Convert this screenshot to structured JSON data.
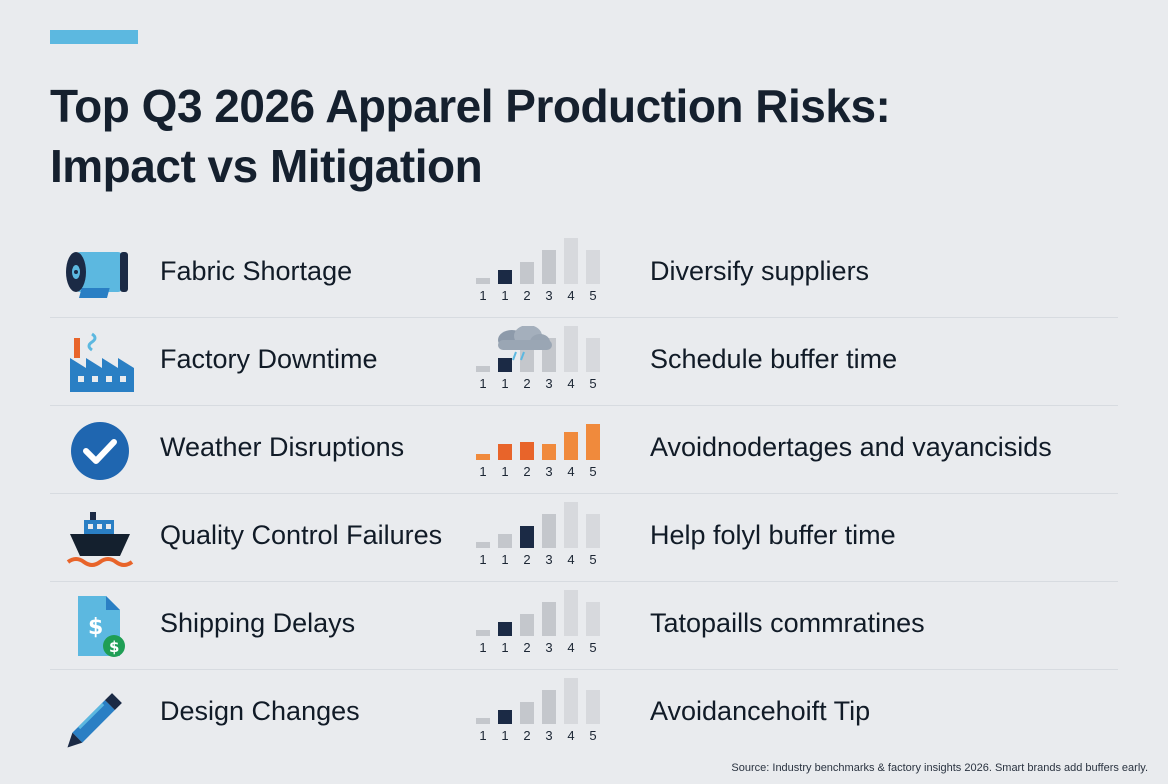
{
  "title_line1": "Top Q3 2026 Apparel Production Risks:",
  "title_line2": "Impact vs Mitigation",
  "scale_labels": [
    "1",
    "1",
    "2",
    "3",
    "4",
    "5"
  ],
  "colors": {
    "accent": "#5cb8e0",
    "navy": "#1b2a45",
    "gray_bar": "#c4c7cc",
    "light_bar": "#d7d9dd",
    "orange": "#f08a3c",
    "orange_dark": "#e8642a",
    "blue": "#2a7fc4"
  },
  "risks": [
    {
      "name": "Fabric Shortage",
      "icon": "fabric-roll-icon",
      "mitigation": "Diversify suppliers",
      "highlight_level": 2,
      "style": "navy"
    },
    {
      "name": "Factory Downtime",
      "icon": "factory-icon",
      "mitigation": "Schedule buffer time",
      "highlight_level": 2,
      "style": "navy-cloud"
    },
    {
      "name": "Weather Disruptions",
      "icon": "checkmark-circle-icon",
      "mitigation": "Avoidnodertages and vayancisids",
      "highlight_level": 5,
      "style": "orange"
    },
    {
      "name": "Quality Control Failures",
      "icon": "ship-icon",
      "mitigation": "Help folyl buffer time",
      "highlight_level": 3,
      "style": "navy"
    },
    {
      "name": "Shipping Delays",
      "icon": "dollar-document-icon",
      "mitigation": "Tatopaills commratines",
      "highlight_level": 2,
      "style": "navy"
    },
    {
      "name": "Design Changes",
      "icon": "pencil-icon",
      "mitigation": "Avoidancehoift Tip",
      "highlight_level": 2,
      "style": "navy"
    }
  ],
  "source": "Source: Industry benchmarks & factory insights 2026. Smart brands add buffers early."
}
